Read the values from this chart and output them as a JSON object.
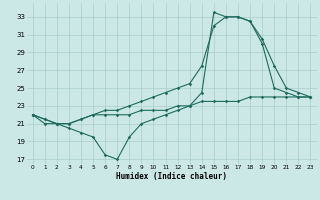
{
  "xlabel": "Humidex (Indice chaleur)",
  "xlim": [
    -0.5,
    23.5
  ],
  "ylim": [
    16.5,
    34.5
  ],
  "yticks": [
    17,
    19,
    21,
    23,
    25,
    27,
    29,
    31,
    33
  ],
  "xticks": [
    0,
    1,
    2,
    3,
    4,
    5,
    6,
    7,
    8,
    9,
    10,
    11,
    12,
    13,
    14,
    15,
    16,
    17,
    18,
    19,
    20,
    21,
    22,
    23
  ],
  "bg_color": "#cce8e6",
  "grid_color": "#aacfcc",
  "line_color": "#1e6b5e",
  "line1_y": [
    22.0,
    21.0,
    21.0,
    20.5,
    20.0,
    19.5,
    17.5,
    17.0,
    19.5,
    21.0,
    21.5,
    22.0,
    22.5,
    23.0,
    24.5,
    33.5,
    33.0,
    33.0,
    32.5,
    30.5,
    27.5,
    25.0,
    24.5,
    24.0
  ],
  "line2_y": [
    22.0,
    21.5,
    21.0,
    21.0,
    21.5,
    22.0,
    22.5,
    22.5,
    23.0,
    23.5,
    24.0,
    24.5,
    25.0,
    25.5,
    27.5,
    32.0,
    33.0,
    33.0,
    32.5,
    30.0,
    25.0,
    24.5,
    24.0,
    24.0
  ],
  "line3_y": [
    22.0,
    21.5,
    21.0,
    21.0,
    21.5,
    22.0,
    22.0,
    22.0,
    22.0,
    22.5,
    22.5,
    22.5,
    23.0,
    23.0,
    23.5,
    23.5,
    23.5,
    23.5,
    24.0,
    24.0,
    24.0,
    24.0,
    24.0,
    24.0
  ]
}
